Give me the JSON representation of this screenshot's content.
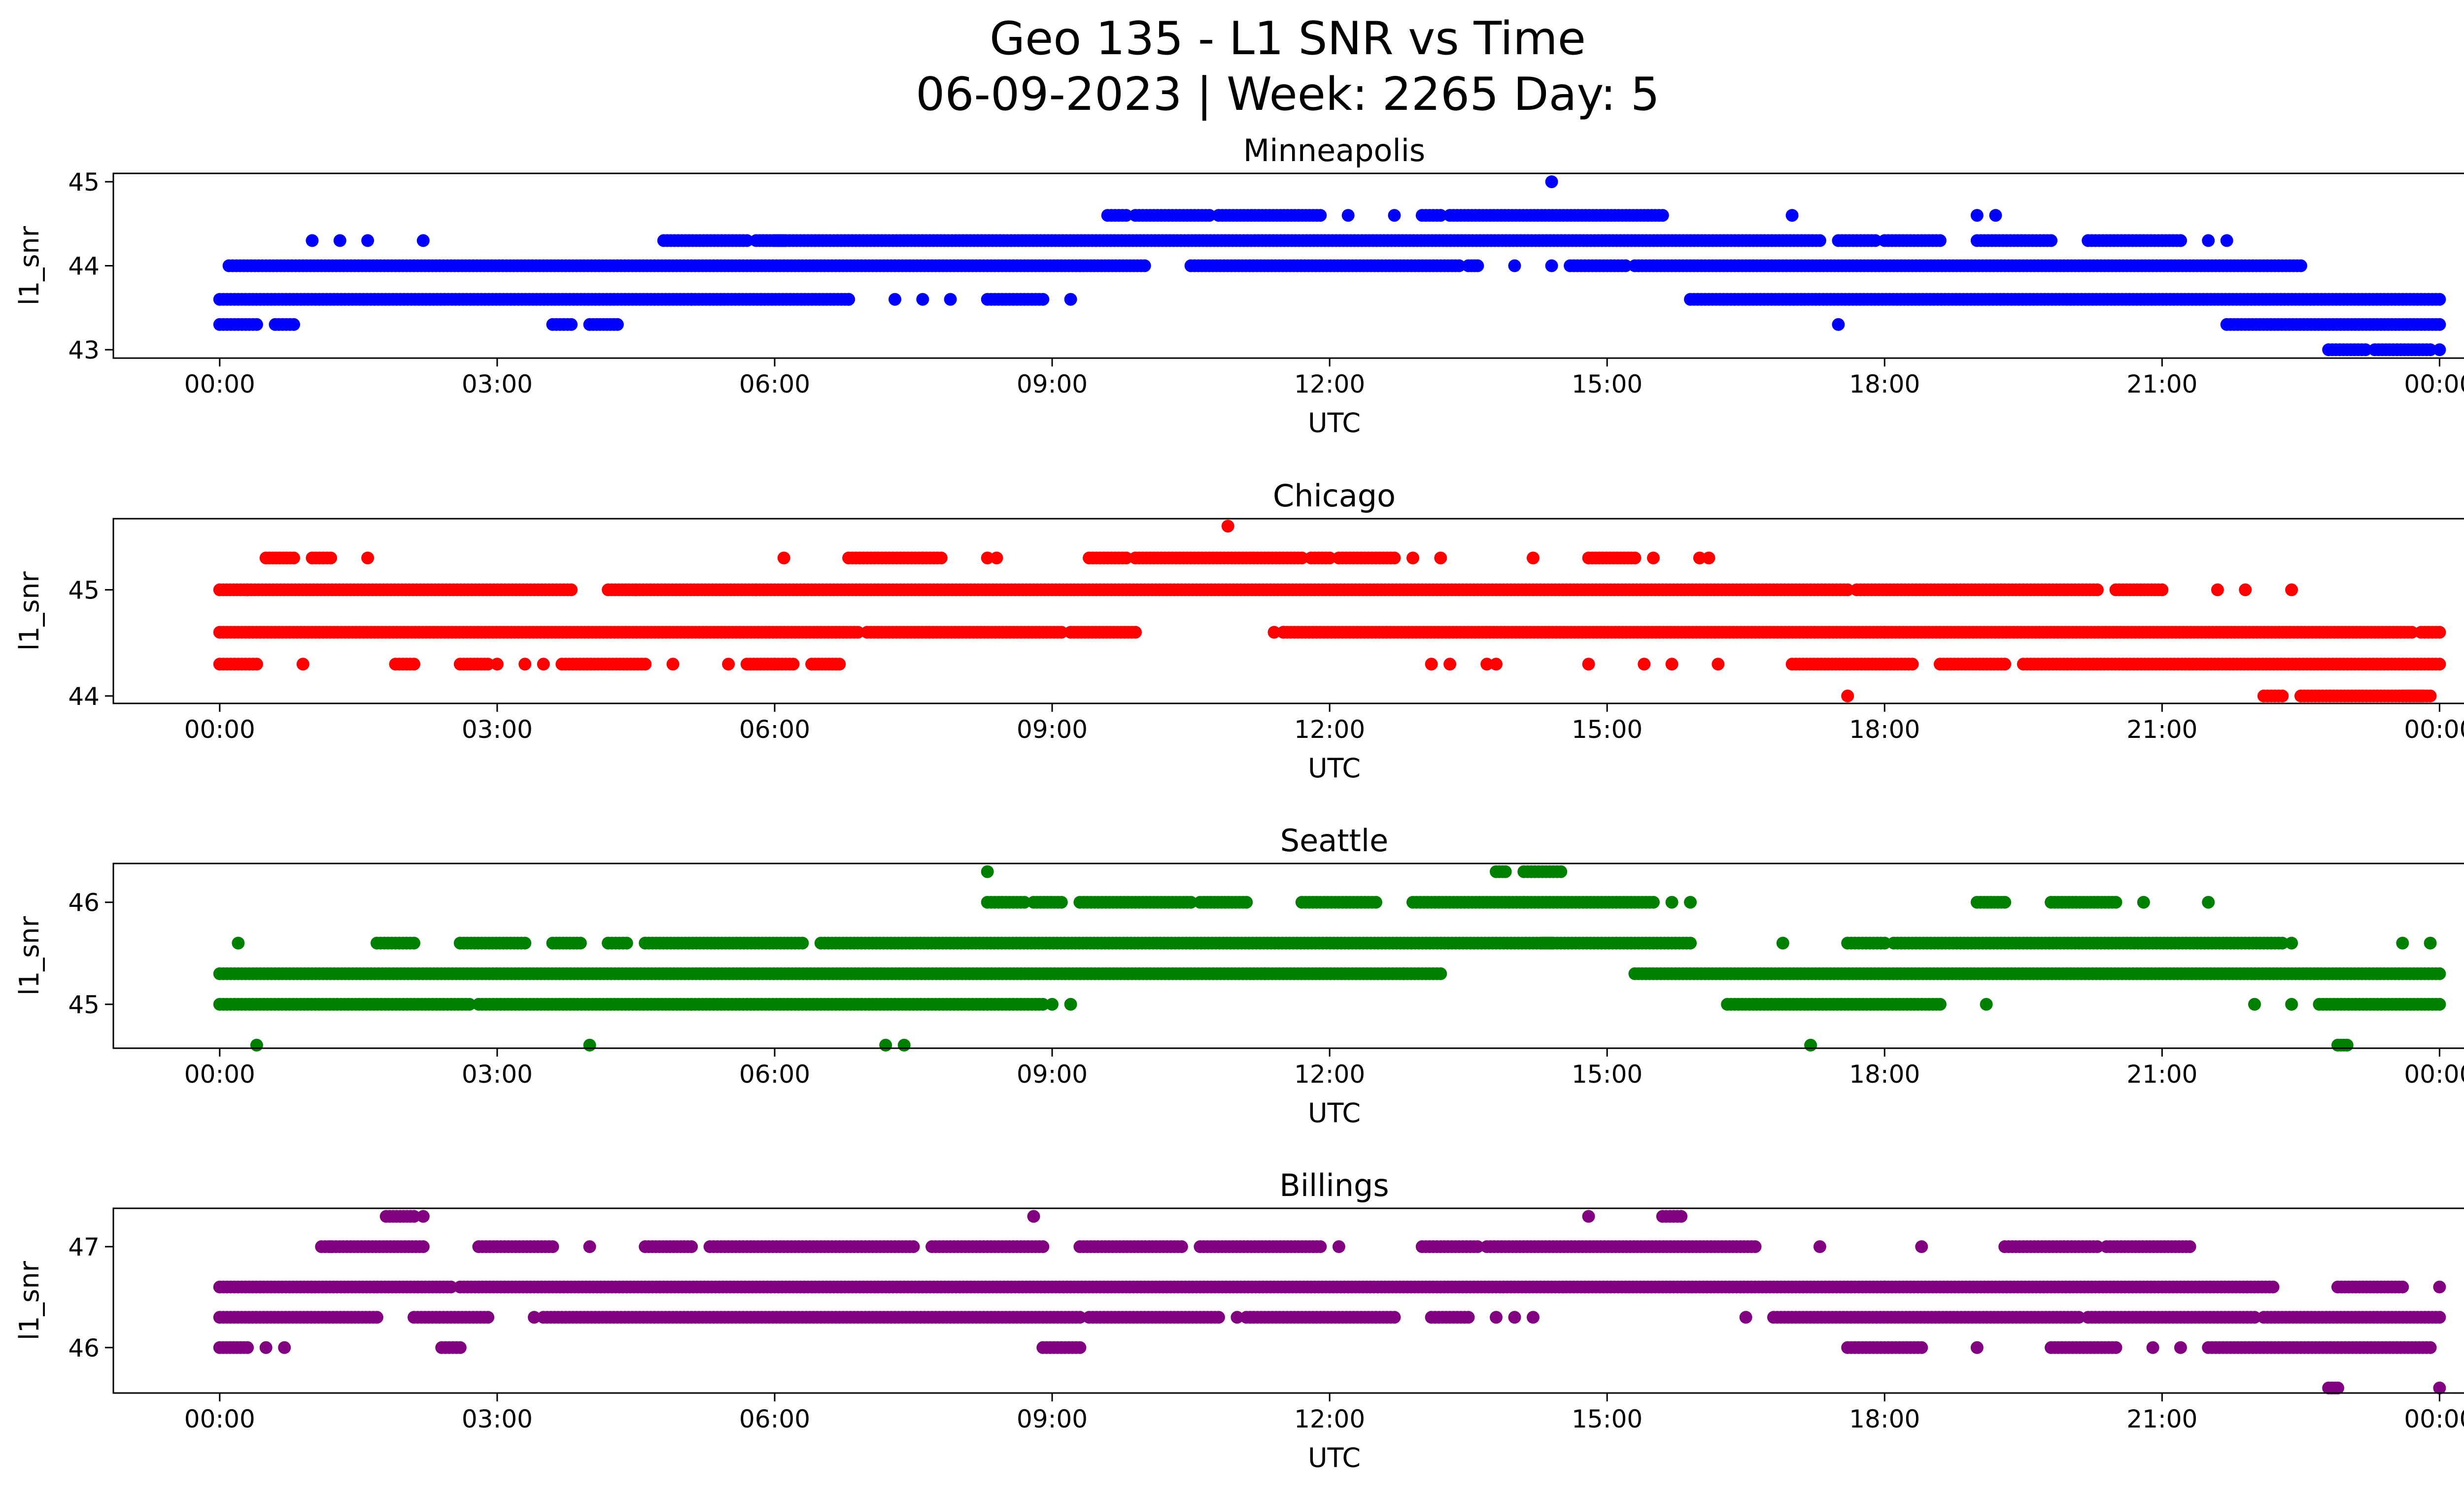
{
  "figure": {
    "title_line1": "Geo 135 - L1 SNR vs Time",
    "title_line2": "06-09-2023 | Week: 2265 Day: 5"
  },
  "chart_data": [
    {
      "type": "scatter",
      "title": "Minneapolis",
      "xlabel": "UTC",
      "ylabel": "l1_snr",
      "color": "#0000ff",
      "xlim_hours": [
        -1.15,
        25.25
      ],
      "ylim": [
        42.9,
        45.1
      ],
      "x_ticks": [
        "00:00",
        "03:00",
        "06:00",
        "09:00",
        "12:00",
        "15:00",
        "18:00",
        "21:00",
        "00:00"
      ],
      "x_tick_hours": [
        0,
        3,
        6,
        9,
        12,
        15,
        18,
        21,
        24
      ],
      "y_ticks": [
        43,
        44,
        45
      ],
      "y_tick_labels": [
        "43",
        "44",
        "45"
      ],
      "segments": [
        {
          "y": 43.6,
          "ranges": [
            [
              0,
              5.1
            ],
            [
              5.1,
              6.8
            ],
            [
              8.3,
              8.9
            ],
            [
              15.9,
              24.0
            ]
          ]
        },
        {
          "y": 44.0,
          "ranges": [
            [
              0.1,
              9.3
            ],
            [
              9.3,
              10.0
            ],
            [
              10.5,
              13.4
            ],
            [
              13.5,
              13.6
            ],
            [
              14.6,
              15.2
            ],
            [
              15.3,
              22.5
            ]
          ]
        },
        {
          "y": 44.3,
          "ranges": [
            [
              4.8,
              5.7
            ],
            [
              5.8,
              6.1
            ],
            [
              6.0,
              17.3
            ],
            [
              17.5,
              17.9
            ],
            [
              18.0,
              18.6
            ],
            [
              19.0,
              19.8
            ],
            [
              20.2,
              21.2
            ]
          ]
        },
        {
          "y": 44.6,
          "ranges": [
            [
              9.6,
              9.8
            ],
            [
              9.9,
              10.7
            ],
            [
              10.8,
              11.9
            ],
            [
              13.0,
              13.2
            ],
            [
              13.3,
              15.6
            ]
          ]
        },
        {
          "y": 43.3,
          "ranges": [
            [
              0.0,
              0.4
            ],
            [
              0.6,
              0.8
            ],
            [
              3.6,
              3.8
            ],
            [
              4.0,
              4.3
            ],
            [
              21.7,
              24.0
            ]
          ]
        },
        {
          "y": 43.0,
          "ranges": [
            [
              22.8,
              23.2
            ],
            [
              23.3,
              23.9
            ]
          ]
        }
      ],
      "points": [
        {
          "x": 7.3,
          "y": 43.6
        },
        {
          "x": 7.6,
          "y": 43.6
        },
        {
          "x": 7.9,
          "y": 43.6
        },
        {
          "x": 9.2,
          "y": 43.6
        },
        {
          "x": 6.8,
          "y": 43.6
        },
        {
          "x": 1.0,
          "y": 44.3
        },
        {
          "x": 1.3,
          "y": 44.3
        },
        {
          "x": 1.6,
          "y": 44.3
        },
        {
          "x": 2.2,
          "y": 44.3
        },
        {
          "x": 12.2,
          "y": 44.6
        },
        {
          "x": 12.7,
          "y": 44.6
        },
        {
          "x": 17.0,
          "y": 44.6
        },
        {
          "x": 19.0,
          "y": 44.6
        },
        {
          "x": 19.2,
          "y": 44.6
        },
        {
          "x": 14.4,
          "y": 45.0
        },
        {
          "x": 14.0,
          "y": 44.0
        },
        {
          "x": 14.4,
          "y": 44.0
        },
        {
          "x": 17.5,
          "y": 43.3
        },
        {
          "x": 24.0,
          "y": 43.0
        },
        {
          "x": 21.2,
          "y": 44.3
        },
        {
          "x": 21.5,
          "y": 44.3
        },
        {
          "x": 21.7,
          "y": 44.3
        }
      ]
    },
    {
      "type": "scatter",
      "title": "Chicago",
      "xlabel": "UTC",
      "ylabel": "l1_snr",
      "color": "#ff0000",
      "xlim_hours": [
        -1.15,
        25.25
      ],
      "ylim": [
        43.93,
        45.67
      ],
      "x_ticks": [
        "00:00",
        "03:00",
        "06:00",
        "09:00",
        "12:00",
        "15:00",
        "18:00",
        "21:00",
        "00:00"
      ],
      "x_tick_hours": [
        0,
        3,
        6,
        9,
        12,
        15,
        18,
        21,
        24
      ],
      "y_ticks": [
        44,
        45
      ],
      "y_tick_labels": [
        "44",
        "45"
      ],
      "segments": [
        {
          "y": 44.6,
          "ranges": [
            [
              0,
              6.9
            ],
            [
              7.0,
              9.1
            ],
            [
              9.2,
              9.9
            ],
            [
              11.5,
              18.0
            ],
            [
              18.0,
              23.7
            ],
            [
              23.8,
              24.0
            ]
          ]
        },
        {
          "y": 45.0,
          "ranges": [
            [
              0,
              0.3
            ],
            [
              0.3,
              3.8
            ],
            [
              4.2,
              4.5
            ],
            [
              4.5,
              5.8
            ],
            [
              5.8,
              17.6
            ],
            [
              17.7,
              20.3
            ],
            [
              20.5,
              21.0
            ]
          ]
        },
        {
          "y": 44.3,
          "ranges": [
            [
              0,
              0.4
            ],
            [
              1.9,
              2.1
            ],
            [
              2.6,
              2.9
            ],
            [
              3.7,
              4.6
            ],
            [
              5.7,
              6.0
            ],
            [
              6.0,
              6.2
            ],
            [
              6.4,
              6.7
            ],
            [
              17.0,
              18.3
            ],
            [
              18.6,
              19.3
            ],
            [
              19.5,
              24.0
            ]
          ]
        },
        {
          "y": 45.3,
          "ranges": [
            [
              0.5,
              0.8
            ],
            [
              1.0,
              1.2
            ],
            [
              6.8,
              7.6
            ],
            [
              7.6,
              7.8
            ],
            [
              9.4,
              9.8
            ],
            [
              9.9,
              11.7
            ],
            [
              11.8,
              12.0
            ],
            [
              12.1,
              12.7
            ],
            [
              14.8,
              15.3
            ]
          ]
        },
        {
          "y": 44.0,
          "ranges": [
            [
              22.1,
              22.3
            ],
            [
              22.5,
              23.8
            ],
            [
              23.6,
              23.9
            ]
          ]
        }
      ],
      "points": [
        {
          "x": 11.4,
          "y": 44.6
        },
        {
          "x": 11.5,
          "y": 44.6
        },
        {
          "x": 0.9,
          "y": 44.3
        },
        {
          "x": 3.0,
          "y": 44.3
        },
        {
          "x": 3.3,
          "y": 44.3
        },
        {
          "x": 3.5,
          "y": 44.3
        },
        {
          "x": 4.9,
          "y": 44.3
        },
        {
          "x": 5.5,
          "y": 44.3
        },
        {
          "x": 13.1,
          "y": 44.3
        },
        {
          "x": 13.3,
          "y": 44.3
        },
        {
          "x": 13.7,
          "y": 44.3
        },
        {
          "x": 13.8,
          "y": 44.3
        },
        {
          "x": 14.8,
          "y": 44.3
        },
        {
          "x": 15.4,
          "y": 44.3
        },
        {
          "x": 15.7,
          "y": 44.3
        },
        {
          "x": 16.2,
          "y": 44.3
        },
        {
          "x": 1.6,
          "y": 45.3
        },
        {
          "x": 6.1,
          "y": 45.3
        },
        {
          "x": 8.3,
          "y": 45.3
        },
        {
          "x": 8.4,
          "y": 45.3
        },
        {
          "x": 12.9,
          "y": 45.3
        },
        {
          "x": 13.2,
          "y": 45.3
        },
        {
          "x": 14.2,
          "y": 45.3
        },
        {
          "x": 15.5,
          "y": 45.3
        },
        {
          "x": 16.0,
          "y": 45.3
        },
        {
          "x": 16.1,
          "y": 45.3
        },
        {
          "x": 10.9,
          "y": 45.6
        },
        {
          "x": 17.6,
          "y": 44.0
        },
        {
          "x": 21.6,
          "y": 45.0
        },
        {
          "x": 21.9,
          "y": 45.0
        },
        {
          "x": 22.4,
          "y": 45.0
        }
      ]
    },
    {
      "type": "scatter",
      "title": "Seattle",
      "xlabel": "UTC",
      "ylabel": "l1_snr",
      "color": "#008000",
      "xlim_hours": [
        -1.15,
        25.25
      ],
      "ylim": [
        44.57,
        46.38
      ],
      "x_ticks": [
        "00:00",
        "03:00",
        "06:00",
        "09:00",
        "12:00",
        "15:00",
        "18:00",
        "21:00",
        "00:00"
      ],
      "x_tick_hours": [
        0,
        3,
        6,
        9,
        12,
        15,
        18,
        21,
        24
      ],
      "y_ticks": [
        45,
        46
      ],
      "y_tick_labels": [
        "45",
        "46"
      ],
      "segments": [
        {
          "y": 45.3,
          "ranges": [
            [
              0,
              11.3
            ],
            [
              11.3,
              12.8
            ],
            [
              12.8,
              13.2
            ],
            [
              15.3,
              24.0
            ]
          ]
        },
        {
          "y": 45.0,
          "ranges": [
            [
              0,
              2.7
            ],
            [
              2.8,
              5.1
            ],
            [
              5.1,
              8.9
            ],
            [
              16.3,
              18.6
            ],
            [
              22.7,
              24.0
            ]
          ]
        },
        {
          "y": 45.6,
          "ranges": [
            [
              1.7,
              2.1
            ],
            [
              2.6,
              3.3
            ],
            [
              3.6,
              3.9
            ],
            [
              4.2,
              4.4
            ],
            [
              4.6,
              6.3
            ],
            [
              6.5,
              14.4
            ],
            [
              14.3,
              15.9
            ],
            [
              17.6,
              18.0
            ],
            [
              18.1,
              22.3
            ]
          ]
        },
        {
          "y": 46.0,
          "ranges": [
            [
              8.3,
              8.7
            ],
            [
              8.8,
              9.1
            ],
            [
              9.3,
              10.5
            ],
            [
              10.6,
              11.1
            ],
            [
              11.7,
              12.5
            ],
            [
              12.9,
              14.1
            ],
            [
              14.1,
              15.5
            ],
            [
              19.0,
              19.3
            ],
            [
              19.8,
              20.5
            ]
          ]
        },
        {
          "y": 46.3,
          "ranges": [
            [
              13.8,
              13.9
            ],
            [
              14.1,
              14.5
            ]
          ]
        },
        {
          "y": 44.6,
          "ranges": [
            [
              22.9,
              23.0
            ]
          ]
        }
      ],
      "points": [
        {
          "x": 0.2,
          "y": 45.6
        },
        {
          "x": 23.6,
          "y": 45.6
        },
        {
          "x": 23.9,
          "y": 45.6
        },
        {
          "x": 16.9,
          "y": 45.6
        },
        {
          "x": 22.4,
          "y": 45.6
        },
        {
          "x": 0.4,
          "y": 44.6
        },
        {
          "x": 4.0,
          "y": 44.6
        },
        {
          "x": 7.2,
          "y": 44.6
        },
        {
          "x": 7.4,
          "y": 44.6
        },
        {
          "x": 17.2,
          "y": 44.6
        },
        {
          "x": 8.3,
          "y": 46.3
        },
        {
          "x": 9.0,
          "y": 45.0
        },
        {
          "x": 9.2,
          "y": 45.0
        },
        {
          "x": 19.1,
          "y": 45.0
        },
        {
          "x": 22.0,
          "y": 45.0
        },
        {
          "x": 22.4,
          "y": 45.0
        },
        {
          "x": 15.7,
          "y": 46.0
        },
        {
          "x": 15.9,
          "y": 46.0
        },
        {
          "x": 20.8,
          "y": 46.0
        },
        {
          "x": 21.5,
          "y": 46.0
        }
      ]
    },
    {
      "type": "scatter",
      "title": "Billings",
      "xlabel": "UTC",
      "ylabel": "l1_snr",
      "color": "#800080",
      "xlim_hours": [
        -1.15,
        25.25
      ],
      "ylim": [
        45.55,
        47.38
      ],
      "x_ticks": [
        "00:00",
        "03:00",
        "06:00",
        "09:00",
        "12:00",
        "15:00",
        "18:00",
        "21:00",
        "00:00"
      ],
      "x_tick_hours": [
        0,
        3,
        6,
        9,
        12,
        15,
        18,
        21,
        24
      ],
      "y_ticks": [
        46,
        47
      ],
      "y_tick_labels": [
        "46",
        "47"
      ],
      "segments": [
        {
          "y": 46.6,
          "ranges": [
            [
              0,
              2.5
            ],
            [
              2.6,
              18.0
            ],
            [
              18.0,
              22.2
            ],
            [
              22.9,
              23.6
            ]
          ]
        },
        {
          "y": 46.3,
          "ranges": [
            [
              0,
              1.7
            ],
            [
              2.1,
              2.9
            ],
            [
              3.5,
              9.3
            ],
            [
              9.4,
              10.8
            ],
            [
              11.1,
              12.7
            ],
            [
              13.1,
              13.5
            ],
            [
              16.8,
              20.1
            ],
            [
              20.2,
              22.0
            ],
            [
              22.1,
              24.0
            ]
          ]
        },
        {
          "y": 47.0,
          "ranges": [
            [
              1.1,
              2.2
            ],
            [
              2.8,
              3.6
            ],
            [
              4.6,
              5.1
            ],
            [
              5.3,
              7.5
            ],
            [
              7.7,
              8.9
            ],
            [
              9.3,
              10.4
            ],
            [
              10.6,
              11.9
            ],
            [
              13.0,
              13.6
            ],
            [
              13.7,
              16.6
            ],
            [
              19.3,
              20.3
            ],
            [
              20.4,
              21.3
            ]
          ]
        },
        {
          "y": 46.0,
          "ranges": [
            [
              0,
              0.3
            ],
            [
              2.4,
              2.6
            ],
            [
              8.9,
              9.3
            ],
            [
              17.6,
              18.4
            ],
            [
              19.8,
              20.5
            ],
            [
              21.5,
              23.9
            ]
          ]
        },
        {
          "y": 47.3,
          "ranges": [
            [
              1.8,
              2.1
            ],
            [
              15.6,
              15.8
            ]
          ]
        },
        {
          "y": 45.6,
          "ranges": [
            [
              22.8,
              22.9
            ]
          ]
        }
      ],
      "points": [
        {
          "x": 0.5,
          "y": 46.0
        },
        {
          "x": 0.7,
          "y": 46.0
        },
        {
          "x": 19.0,
          "y": 46.0
        },
        {
          "x": 20.9,
          "y": 46.0
        },
        {
          "x": 21.2,
          "y": 46.0
        },
        {
          "x": 3.4,
          "y": 46.3
        },
        {
          "x": 11.0,
          "y": 46.3
        },
        {
          "x": 13.8,
          "y": 46.3
        },
        {
          "x": 14.0,
          "y": 46.3
        },
        {
          "x": 14.2,
          "y": 46.3
        },
        {
          "x": 16.5,
          "y": 46.3
        },
        {
          "x": 1.2,
          "y": 47.0
        },
        {
          "x": 4.0,
          "y": 47.0
        },
        {
          "x": 12.1,
          "y": 47.0
        },
        {
          "x": 17.3,
          "y": 47.0
        },
        {
          "x": 18.4,
          "y": 47.0
        },
        {
          "x": 8.8,
          "y": 47.3
        },
        {
          "x": 14.8,
          "y": 47.3
        },
        {
          "x": 2.2,
          "y": 47.3
        },
        {
          "x": 24.0,
          "y": 45.6
        },
        {
          "x": 24.0,
          "y": 46.6
        }
      ]
    }
  ]
}
